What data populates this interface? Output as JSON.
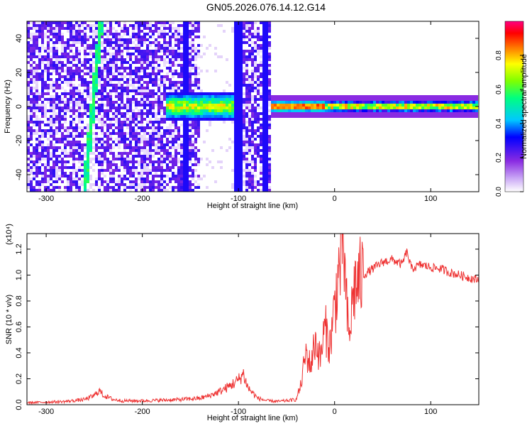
{
  "page": {
    "title": "GN05.2026.076.14.12.G14"
  },
  "chart_data": [
    {
      "type": "heatmap",
      "xlabel": "Height of straight line (km)",
      "ylabel": "Frequency (Hz)",
      "xlim": [
        -320,
        150
      ],
      "ylim": [
        -50,
        50
      ],
      "xticks": [
        -300,
        -200,
        -100,
        0,
        100
      ],
      "yticks": [
        -40,
        -20,
        0,
        20,
        40
      ],
      "colorbar": {
        "label": "Normalized spectral amplitude",
        "range": [
          0,
          1
        ],
        "ticks": [
          "0.0",
          "0.2",
          "0.4",
          "0.6",
          "0.8"
        ],
        "colormap": [
          "#ffffff",
          "#c9a6f5",
          "#8a2be2",
          "#0000ff",
          "#00c8ff",
          "#00ff80",
          "#7fff00",
          "#ffff00",
          "#ff8000",
          "#ff0000",
          "#ff0080"
        ]
      },
      "features": [
        {
          "description": "diffuse noise region",
          "x_range": [
            -320,
            -65
          ],
          "y_range": [
            -50,
            50
          ],
          "amplitude": 0.15
        },
        {
          "description": "blank gap",
          "x_range": [
            -140,
            -105
          ],
          "y_range": [
            -50,
            50
          ],
          "amplitude": 0.0
        },
        {
          "description": "slanted streak",
          "x_start": -260,
          "x_end": -243,
          "amplitude": 0.45
        },
        {
          "description": "blob near zero frequency",
          "x_range": [
            -175,
            -105
          ],
          "y_range": [
            -8,
            8
          ],
          "amplitude": 0.5
        },
        {
          "description": "strong carrier line",
          "x_range": [
            -65,
            150
          ],
          "y_center": 0,
          "half_width_hz": 2,
          "amplitude": 0.95
        }
      ]
    },
    {
      "type": "line",
      "xlabel": "Height of straight line (km)",
      "ylabel": "SNR (10 * v/v)",
      "yscale_note": "(x10⁴)",
      "xlim": [
        -320,
        150
      ],
      "ylim": [
        0,
        1.32
      ],
      "xticks": [
        -300,
        -200,
        -100,
        0,
        100
      ],
      "yticks": [
        0.0,
        0.2,
        0.4,
        0.6,
        0.8,
        1.0,
        1.2
      ],
      "color": "#ee3333",
      "series": [
        {
          "x": [
            -320,
            -300,
            -280,
            -260,
            -250,
            -245,
            -240,
            -230,
            -220,
            -200,
            -180,
            -160,
            -140,
            -130,
            -120,
            -110,
            -100,
            -95,
            -90,
            -80,
            -70,
            -60,
            -50,
            -40,
            -35,
            -30,
            -25,
            -20,
            -15,
            -10,
            -5,
            0,
            3,
            6,
            9,
            12,
            15,
            20,
            25,
            30,
            40,
            50,
            60,
            70,
            75,
            80,
            90,
            100,
            110,
            120,
            130,
            140,
            150
          ],
          "y": [
            0.015,
            0.02,
            0.025,
            0.04,
            0.07,
            0.11,
            0.07,
            0.04,
            0.03,
            0.03,
            0.035,
            0.04,
            0.05,
            0.07,
            0.1,
            0.14,
            0.19,
            0.24,
            0.13,
            0.05,
            0.03,
            0.025,
            0.03,
            0.04,
            0.15,
            0.4,
            0.3,
            0.5,
            0.35,
            0.6,
            0.45,
            0.75,
            0.95,
            1.1,
            1.3,
            0.8,
            0.5,
            0.9,
            0.95,
            1.0,
            1.05,
            1.1,
            1.12,
            1.08,
            1.18,
            1.05,
            1.08,
            1.06,
            1.05,
            1.02,
            1.0,
            0.98,
            0.96
          ]
        }
      ]
    }
  ]
}
